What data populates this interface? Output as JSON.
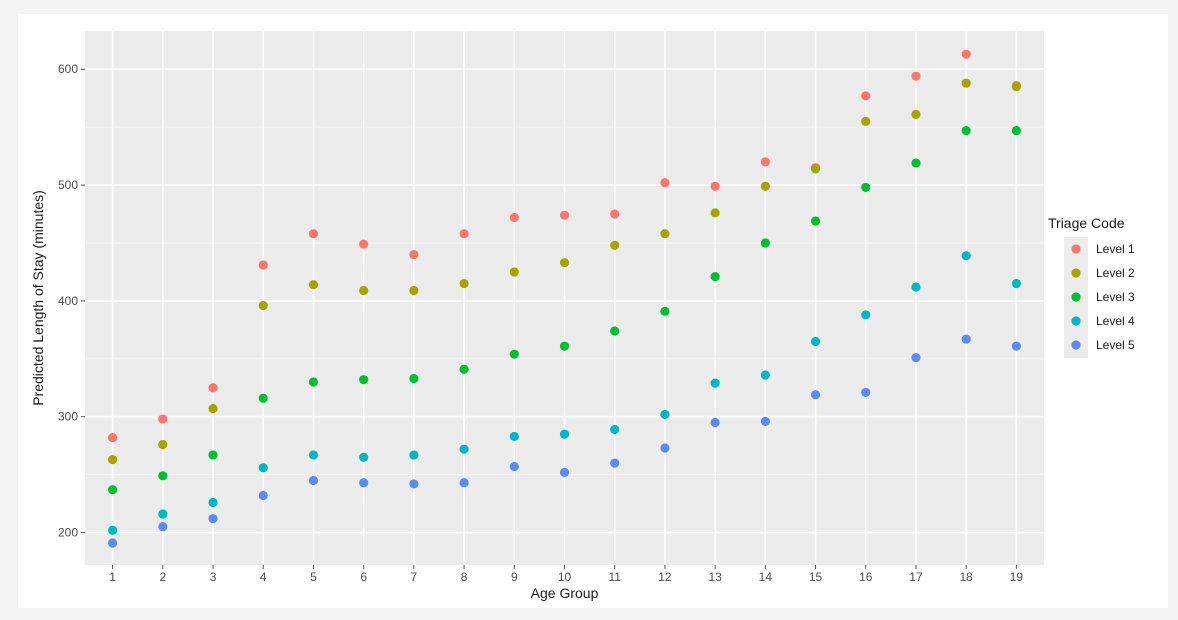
{
  "chart_data": {
    "type": "scatter",
    "title": "",
    "xlabel": "Age Group",
    "ylabel": "Predicted Length of Stay (minutes)",
    "x": [
      1,
      2,
      3,
      4,
      5,
      6,
      7,
      8,
      9,
      10,
      11,
      12,
      13,
      14,
      15,
      16,
      17,
      18,
      19
    ],
    "xlim": [
      0.45,
      19.55
    ],
    "ylim": [
      172,
      633
    ],
    "y_ticks": [
      200,
      300,
      400,
      500,
      600
    ],
    "grid": true,
    "legend": {
      "title": "Triage Code",
      "position": "right"
    },
    "series": [
      {
        "name": "Level 1",
        "color": "#F8766D",
        "values": [
          282,
          298,
          325,
          431,
          458,
          449,
          440,
          458,
          472,
          474,
          475,
          502,
          499,
          520,
          515,
          577,
          594,
          613,
          586
        ]
      },
      {
        "name": "Level 2",
        "color": "#A3A500",
        "values": [
          263,
          276,
          307,
          396,
          414,
          409,
          409,
          415,
          425,
          433,
          448,
          458,
          476,
          499,
          514,
          555,
          561,
          588,
          585
        ]
      },
      {
        "name": "Level 3",
        "color": "#00BF30",
        "values": [
          237,
          249,
          267,
          316,
          330,
          332,
          333,
          341,
          354,
          361,
          374,
          391,
          421,
          450,
          469,
          498,
          519,
          547,
          547
        ]
      },
      {
        "name": "Level 4",
        "color": "#00B7C3",
        "values": [
          202,
          216,
          226,
          256,
          267,
          265,
          267,
          272,
          283,
          285,
          289,
          302,
          329,
          336,
          365,
          388,
          412,
          439,
          415
        ]
      },
      {
        "name": "Level 5",
        "color": "#5A8BF0",
        "values": [
          191,
          205,
          212,
          232,
          245,
          243,
          242,
          243,
          257,
          252,
          260,
          273,
          295,
          296,
          319,
          321,
          351,
          367,
          361
        ]
      }
    ]
  }
}
